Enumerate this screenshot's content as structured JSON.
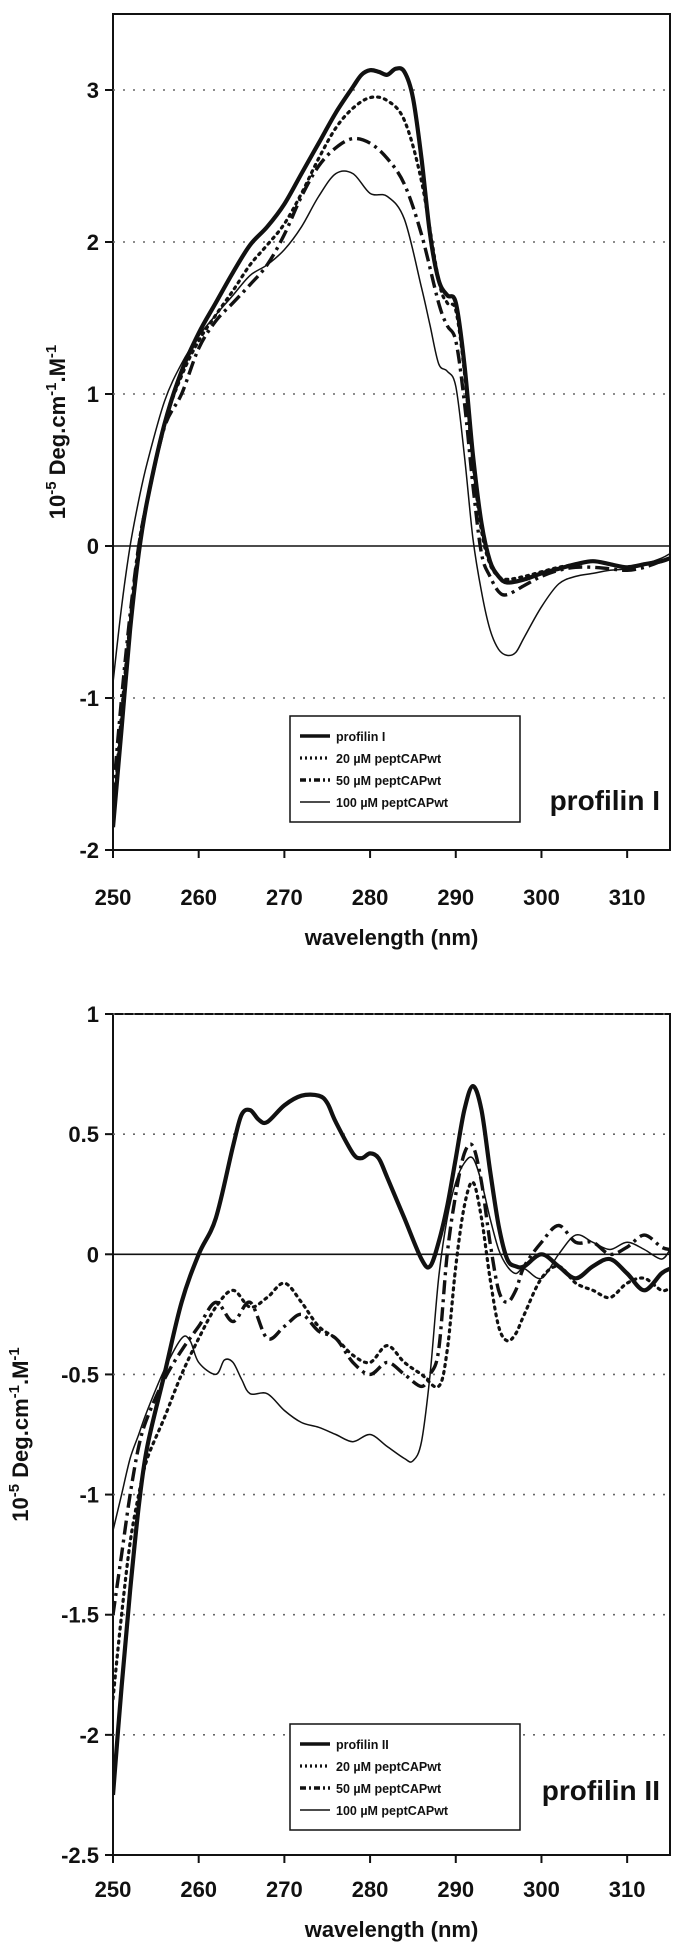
{
  "chart_data": [
    {
      "type": "line",
      "panel_label": "profilin I",
      "xlabel": "wavelength (nm)",
      "ylabel": "10^-5 Deg.cm^-1.M^-1",
      "xlim": [
        250,
        315
      ],
      "ylim": [
        -2,
        3.5
      ],
      "x_ticks": [
        "250",
        "260",
        "270",
        "280",
        "290",
        "300",
        "310"
      ],
      "y_ticks": [
        "-2",
        "-1",
        "0",
        "1",
        "2",
        "3"
      ],
      "grid": "horizontal dotted",
      "legend_position": "bottom-left",
      "series": [
        {
          "name": "profilin I",
          "style": "thick-solid",
          "x": [
            250,
            251,
            252,
            253,
            254,
            256,
            258,
            260,
            262,
            264,
            266,
            268,
            270,
            272,
            274,
            276,
            278,
            279,
            280,
            281,
            282,
            283,
            284,
            285,
            286,
            287,
            288,
            289,
            290,
            291,
            292,
            293,
            294,
            295,
            296,
            298,
            300,
            302,
            304,
            306,
            308,
            310,
            312,
            314,
            315
          ],
          "y": [
            -1.85,
            -1.2,
            -0.55,
            -0.05,
            0.3,
            0.8,
            1.15,
            1.4,
            1.6,
            1.8,
            1.98,
            2.1,
            2.25,
            2.45,
            2.65,
            2.85,
            3.02,
            3.1,
            3.13,
            3.12,
            3.1,
            3.14,
            3.12,
            2.95,
            2.55,
            2.05,
            1.75,
            1.65,
            1.6,
            1.2,
            0.6,
            0.15,
            -0.1,
            -0.2,
            -0.24,
            -0.22,
            -0.18,
            -0.15,
            -0.12,
            -0.1,
            -0.12,
            -0.14,
            -0.12,
            -0.1,
            -0.08
          ]
        },
        {
          "name": "20 µM peptCAPwt",
          "style": "dotted",
          "x": [
            250,
            251,
            252,
            253,
            254,
            256,
            258,
            260,
            262,
            264,
            266,
            268,
            270,
            272,
            274,
            276,
            278,
            280,
            282,
            284,
            286,
            288,
            289,
            290,
            291,
            292,
            293,
            294,
            295,
            296,
            298,
            300,
            302,
            304,
            306,
            308,
            310,
            312,
            314,
            315
          ],
          "y": [
            -1.8,
            -1.1,
            -0.5,
            0,
            0.3,
            0.8,
            1.12,
            1.35,
            1.52,
            1.68,
            1.85,
            1.98,
            2.12,
            2.32,
            2.55,
            2.75,
            2.88,
            2.95,
            2.93,
            2.8,
            2.4,
            1.75,
            1.6,
            1.55,
            1.15,
            0.55,
            0.1,
            -0.12,
            -0.2,
            -0.22,
            -0.2,
            -0.17,
            -0.14,
            -0.12,
            -0.1,
            -0.12,
            -0.14,
            -0.12,
            -0.1,
            -0.08
          ]
        },
        {
          "name": "50 µM peptCAPwt",
          "style": "dash-dot",
          "x": [
            250,
            251,
            252,
            253,
            254,
            256,
            258,
            260,
            262,
            264,
            266,
            268,
            270,
            272,
            274,
            276,
            278,
            280,
            282,
            284,
            286,
            288,
            289,
            290,
            291,
            292,
            293,
            294,
            295,
            296,
            298,
            300,
            302,
            304,
            306,
            308,
            310,
            312,
            314,
            315
          ],
          "y": [
            -1.65,
            -1.0,
            -0.45,
            0,
            0.3,
            0.78,
            1.0,
            1.3,
            1.48,
            1.6,
            1.72,
            1.85,
            2.05,
            2.3,
            2.5,
            2.62,
            2.68,
            2.65,
            2.55,
            2.38,
            2.05,
            1.6,
            1.45,
            1.35,
            0.95,
            0.4,
            -0.05,
            -0.2,
            -0.3,
            -0.32,
            -0.26,
            -0.2,
            -0.16,
            -0.14,
            -0.14,
            -0.15,
            -0.16,
            -0.14,
            -0.1,
            -0.08
          ]
        },
        {
          "name": "100 µM peptCAPwt",
          "style": "thin-solid",
          "x": [
            250,
            251,
            252,
            253,
            254,
            256,
            258,
            260,
            262,
            264,
            266,
            268,
            270,
            272,
            274,
            276,
            278,
            280,
            282,
            284,
            286,
            287,
            288,
            289,
            290,
            291,
            292,
            293,
            294,
            295,
            296,
            297,
            298,
            300,
            302,
            304,
            306,
            308,
            310,
            312,
            314,
            315
          ],
          "y": [
            -0.9,
            -0.4,
            0,
            0.3,
            0.55,
            0.95,
            1.2,
            1.38,
            1.52,
            1.65,
            1.78,
            1.85,
            1.95,
            2.1,
            2.3,
            2.45,
            2.45,
            2.32,
            2.3,
            2.15,
            1.7,
            1.45,
            1.2,
            1.15,
            1.05,
            0.6,
            0.05,
            -0.3,
            -0.55,
            -0.68,
            -0.72,
            -0.7,
            -0.6,
            -0.4,
            -0.25,
            -0.2,
            -0.18,
            -0.16,
            -0.15,
            -0.12,
            -0.08,
            -0.05
          ]
        }
      ]
    },
    {
      "type": "line",
      "panel_label": "profilin II",
      "xlabel": "wavelength (nm)",
      "ylabel": "10^-5 Deg.cm^-1.M^-1",
      "xlim": [
        250,
        315
      ],
      "ylim": [
        -2.5,
        1
      ],
      "x_ticks": [
        "250",
        "260",
        "270",
        "280",
        "290",
        "300",
        "310"
      ],
      "y_ticks": [
        "-2.5",
        "-2",
        "-1.5",
        "-1",
        "-0.5",
        "0",
        "0.5",
        "1"
      ],
      "grid": "horizontal dotted",
      "legend_position": "bottom-left",
      "series": [
        {
          "name": "profilin II",
          "style": "thick-solid",
          "x": [
            250,
            251,
            252,
            253,
            254,
            256,
            258,
            260,
            262,
            264,
            265,
            266,
            267,
            268,
            270,
            272,
            274,
            275,
            276,
            278,
            279,
            280,
            281,
            282,
            284,
            286,
            287,
            288,
            289,
            290,
            291,
            292,
            293,
            294,
            295,
            296,
            297,
            298,
            300,
            302,
            304,
            306,
            308,
            310,
            312,
            314,
            315
          ],
          "y": [
            -2.25,
            -1.8,
            -1.4,
            -1.05,
            -0.8,
            -0.5,
            -0.2,
            0,
            0.15,
            0.45,
            0.58,
            0.6,
            0.56,
            0.55,
            0.62,
            0.66,
            0.66,
            0.63,
            0.55,
            0.42,
            0.4,
            0.42,
            0.4,
            0.32,
            0.15,
            -0.02,
            -0.05,
            0.05,
            0.2,
            0.4,
            0.6,
            0.7,
            0.6,
            0.35,
            0.12,
            -0.02,
            -0.05,
            -0.05,
            0,
            -0.05,
            -0.1,
            -0.05,
            -0.02,
            -0.08,
            -0.15,
            -0.08,
            -0.06
          ]
        },
        {
          "name": "20 µM peptCAPwt",
          "style": "dotted",
          "x": [
            250,
            251,
            252,
            253,
            254,
            256,
            258,
            260,
            262,
            264,
            266,
            268,
            270,
            272,
            274,
            276,
            278,
            280,
            282,
            284,
            286,
            288,
            289,
            290,
            291,
            292,
            293,
            294,
            295,
            296,
            297,
            298,
            300,
            302,
            304,
            306,
            308,
            310,
            312,
            314,
            315
          ],
          "y": [
            -1.85,
            -1.5,
            -1.2,
            -1.0,
            -0.85,
            -0.68,
            -0.5,
            -0.35,
            -0.22,
            -0.15,
            -0.22,
            -0.18,
            -0.12,
            -0.2,
            -0.3,
            -0.35,
            -0.42,
            -0.45,
            -0.38,
            -0.45,
            -0.5,
            -0.55,
            -0.4,
            -0.05,
            0.2,
            0.3,
            0.15,
            -0.1,
            -0.3,
            -0.36,
            -0.33,
            -0.25,
            -0.1,
            -0.05,
            -0.12,
            -0.15,
            -0.18,
            -0.12,
            -0.1,
            -0.15,
            -0.14
          ]
        },
        {
          "name": "50 µM peptCAPwt",
          "style": "dash-dot",
          "x": [
            250,
            251,
            252,
            253,
            254,
            256,
            258,
            260,
            262,
            264,
            266,
            268,
            270,
            272,
            274,
            276,
            278,
            280,
            282,
            284,
            286,
            287,
            288,
            289,
            290,
            291,
            292,
            293,
            294,
            295,
            296,
            297,
            298,
            300,
            302,
            304,
            306,
            308,
            310,
            312,
            314,
            315
          ],
          "y": [
            -1.5,
            -1.25,
            -1.0,
            -0.8,
            -0.68,
            -0.52,
            -0.4,
            -0.3,
            -0.2,
            -0.28,
            -0.2,
            -0.35,
            -0.3,
            -0.25,
            -0.32,
            -0.35,
            -0.45,
            -0.5,
            -0.45,
            -0.5,
            -0.55,
            -0.5,
            -0.4,
            0,
            0.25,
            0.42,
            0.45,
            0.3,
            0.05,
            -0.15,
            -0.2,
            -0.15,
            -0.05,
            0.05,
            0.12,
            0.05,
            0.05,
            0,
            0.03,
            0.08,
            0.03,
            0.02
          ]
        },
        {
          "name": "100 µM peptCAPwt",
          "style": "thin-solid",
          "x": [
            250,
            251,
            252,
            253,
            254,
            256,
            258,
            259,
            260,
            262,
            263,
            264,
            265,
            266,
            268,
            270,
            272,
            274,
            276,
            278,
            280,
            282,
            284,
            285,
            286,
            287,
            288,
            289,
            290,
            291,
            292,
            293,
            294,
            295,
            296,
            297,
            298,
            300,
            302,
            304,
            306,
            308,
            310,
            312,
            314,
            315
          ],
          "y": [
            -1.15,
            -1.0,
            -0.85,
            -0.75,
            -0.65,
            -0.48,
            -0.35,
            -0.36,
            -0.45,
            -0.5,
            -0.44,
            -0.45,
            -0.52,
            -0.58,
            -0.58,
            -0.65,
            -0.7,
            -0.72,
            -0.75,
            -0.78,
            -0.75,
            -0.8,
            -0.85,
            -0.86,
            -0.78,
            -0.5,
            -0.1,
            0.15,
            0.3,
            0.38,
            0.4,
            0.3,
            0.15,
            0.02,
            -0.05,
            -0.08,
            -0.06,
            -0.1,
            0,
            0.08,
            0.05,
            0.02,
            0.05,
            0.02,
            -0.02,
            0.02
          ]
        }
      ]
    }
  ]
}
